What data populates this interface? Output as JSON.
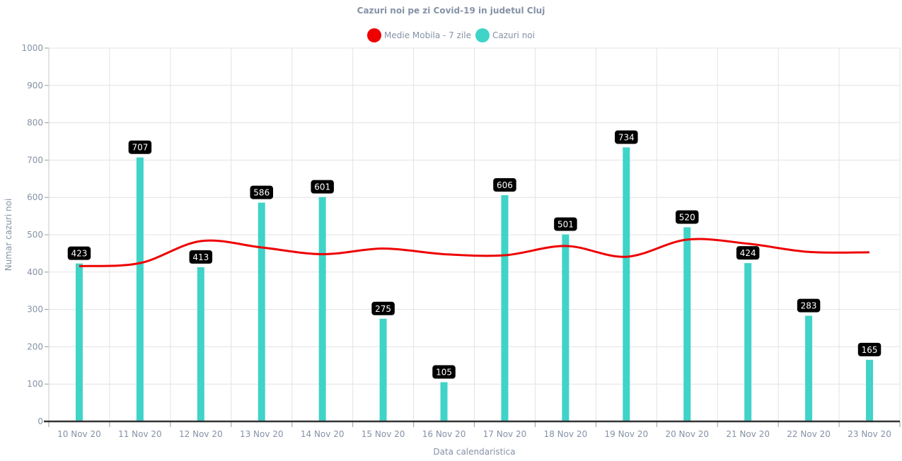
{
  "chart_data": {
    "type": "bar",
    "title": "Cazuri noi pe zi Covid-19 in judetul Cluj",
    "xlabel": "Data calendaristica",
    "ylabel": "Numar cazuri noi",
    "ylim": [
      0,
      1000
    ],
    "yticks": [
      0,
      100,
      200,
      300,
      400,
      500,
      600,
      700,
      800,
      900,
      1000
    ],
    "grid": true,
    "legend_position": "top-center",
    "categories": [
      "10 Nov 20",
      "11 Nov 20",
      "12 Nov 20",
      "13 Nov 20",
      "14 Nov 20",
      "15 Nov 20",
      "16 Nov 20",
      "17 Nov 20",
      "18 Nov 20",
      "19 Nov 20",
      "20 Nov 20",
      "21 Nov 20",
      "22 Nov 20",
      "23 Nov 20"
    ],
    "series": [
      {
        "name": "Medie Mobila - 7 zile",
        "type": "line",
        "color": "#ee0000",
        "values": [
          416,
          424,
          483,
          466,
          448,
          463,
          448,
          445,
          470,
          441,
          487,
          476,
          454,
          453
        ]
      },
      {
        "name": "Cazuri noi",
        "type": "bar",
        "color": "#40d3c8",
        "values": [
          423,
          707,
          413,
          586,
          601,
          275,
          105,
          606,
          501,
          734,
          520,
          424,
          283,
          165
        ]
      }
    ]
  }
}
